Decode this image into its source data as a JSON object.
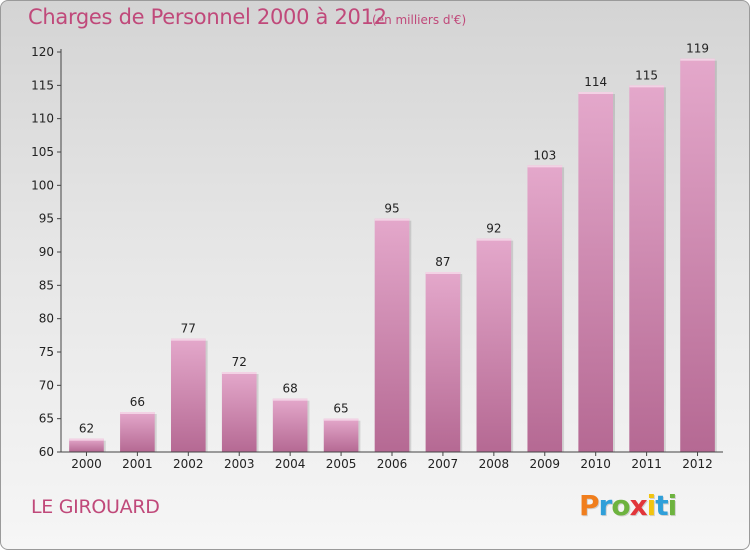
{
  "header": {
    "title": "Charges de Personnel 2000 à 2012",
    "subtitle": "(en milliers d'€)"
  },
  "footer": {
    "commune": "LE GIROUARD",
    "logo": [
      "P",
      "r",
      "o",
      "x",
      "i",
      "t",
      "i"
    ]
  },
  "colors": {
    "bar_top": "#e4a8cb",
    "bar_bottom": "#b56993",
    "accent": "#c0497a",
    "logo": [
      "#f07e1d",
      "#2f9fd9",
      "#6db33f",
      "#e2353a",
      "#f1c40f",
      "#2f9fd9",
      "#6db33f"
    ]
  },
  "chart_data": {
    "type": "bar",
    "title": "Charges de Personnel 2000 à 2012",
    "subtitle": "(en milliers d'€)",
    "categories": [
      "2000",
      "2001",
      "2002",
      "2003",
      "2004",
      "2005",
      "2006",
      "2007",
      "2008",
      "2009",
      "2010",
      "2011",
      "2012"
    ],
    "values": [
      62,
      66,
      77,
      72,
      68,
      65,
      95,
      87,
      92,
      103,
      114,
      115,
      119
    ],
    "ylim": [
      60,
      120
    ],
    "yticks": [
      60,
      65,
      70,
      75,
      80,
      85,
      90,
      95,
      100,
      105,
      110,
      115,
      120
    ],
    "grid": false,
    "legend": "none"
  }
}
